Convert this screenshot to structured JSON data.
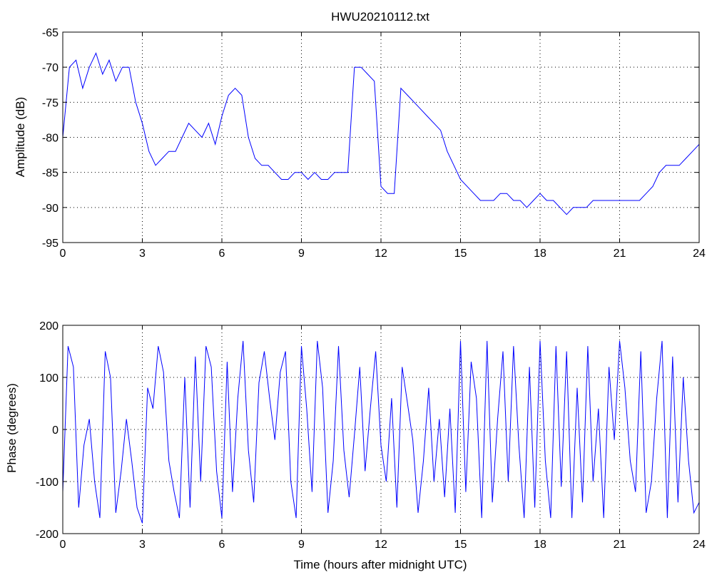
{
  "chart_data": [
    {
      "type": "line",
      "title": "HWU20210112.txt",
      "xlabel": "",
      "ylabel": "Amplitude (dB)",
      "xlim": [
        0,
        24
      ],
      "ylim": [
        -95,
        -65
      ],
      "xticks": [
        0,
        3,
        6,
        9,
        12,
        15,
        18,
        21,
        24
      ],
      "yticks": [
        -95,
        -90,
        -85,
        -80,
        -75,
        -70,
        -65
      ],
      "grid": true,
      "line_color": "#0000ff",
      "series": [
        {
          "x": [
            0,
            0.25,
            0.5,
            0.75,
            1.0,
            1.25,
            1.5,
            1.75,
            2.0,
            2.25,
            2.5,
            2.75,
            3.0,
            3.25,
            3.5,
            3.75,
            4.0,
            4.25,
            4.5,
            4.75,
            5.0,
            5.25,
            5.5,
            5.75,
            6.0,
            6.25,
            6.5,
            6.75,
            7.0,
            7.25,
            7.5,
            7.75,
            8.0,
            8.25,
            8.5,
            8.75,
            9.0,
            9.25,
            9.5,
            9.75,
            10.0,
            10.25,
            10.5,
            10.75,
            11.0,
            11.25,
            11.5,
            11.75,
            12.0,
            12.25,
            12.5,
            12.75,
            13.0,
            13.25,
            13.5,
            13.75,
            14.0,
            14.25,
            14.5,
            14.75,
            15.0,
            15.25,
            15.5,
            15.75,
            16.0,
            16.25,
            16.5,
            16.75,
            17.0,
            17.25,
            17.5,
            17.75,
            18.0,
            18.25,
            18.5,
            18.75,
            19.0,
            19.25,
            19.5,
            19.75,
            20.0,
            20.25,
            20.5,
            20.75,
            21.0,
            21.25,
            21.5,
            21.75,
            22.0,
            22.25,
            22.5,
            22.75,
            23.0,
            23.25,
            23.5,
            23.75,
            24.0
          ],
          "values": [
            -80,
            -70,
            -69,
            -73,
            -70,
            -68,
            -71,
            -69,
            -72,
            -70,
            -70,
            -75,
            -78,
            -82,
            -84,
            -83,
            -82,
            -82,
            -80,
            -78,
            -79,
            -80,
            -78,
            -81,
            -77,
            -74,
            -73,
            -74,
            -80,
            -83,
            -84,
            -84,
            -85,
            -86,
            -86,
            -85,
            -85,
            -86,
            -85,
            -86,
            -86,
            -85,
            -85,
            -85,
            -70,
            -70,
            -71,
            -72,
            -87,
            -88,
            -88,
            -73,
            -74,
            -75,
            -76,
            -77,
            -78,
            -79,
            -82,
            -84,
            -86,
            -87,
            -88,
            -89,
            -89,
            -89,
            -88,
            -88,
            -89,
            -89,
            -90,
            -89,
            -88,
            -89,
            -89,
            -90,
            -91,
            -90,
            -90,
            -90,
            -89,
            -89,
            -89,
            -89,
            -89,
            -89,
            -89,
            -89,
            -88,
            -87,
            -85,
            -84,
            -84,
            -84,
            -83,
            -82,
            -81
          ]
        }
      ]
    },
    {
      "type": "line",
      "title": "",
      "xlabel": "Time (hours after midnight UTC)",
      "ylabel": "Phase (degrees)",
      "xlim": [
        0,
        24
      ],
      "ylim": [
        -200,
        200
      ],
      "xticks": [
        0,
        3,
        6,
        9,
        12,
        15,
        18,
        21,
        24
      ],
      "yticks": [
        -200,
        -100,
        0,
        100,
        200
      ],
      "grid": true,
      "line_color": "#0000ff",
      "series": [
        {
          "x": [
            0,
            0.2,
            0.4,
            0.6,
            0.8,
            1.0,
            1.2,
            1.4,
            1.6,
            1.8,
            2.0,
            2.2,
            2.4,
            2.6,
            2.8,
            3.0,
            3.2,
            3.4,
            3.6,
            3.8,
            4.0,
            4.2,
            4.4,
            4.6,
            4.8,
            5.0,
            5.2,
            5.4,
            5.6,
            5.8,
            6.0,
            6.2,
            6.4,
            6.6,
            6.8,
            7.0,
            7.2,
            7.4,
            7.6,
            7.8,
            8.0,
            8.2,
            8.4,
            8.6,
            8.8,
            9.0,
            9.2,
            9.4,
            9.6,
            9.8,
            10.0,
            10.2,
            10.4,
            10.6,
            10.8,
            11.0,
            11.2,
            11.4,
            11.6,
            11.8,
            12.0,
            12.2,
            12.4,
            12.6,
            12.8,
            13.0,
            13.2,
            13.4,
            13.6,
            13.8,
            14.0,
            14.2,
            14.4,
            14.6,
            14.8,
            15.0,
            15.2,
            15.4,
            15.6,
            15.8,
            16.0,
            16.2,
            16.4,
            16.6,
            16.8,
            17.0,
            17.2,
            17.4,
            17.6,
            17.8,
            18.0,
            18.2,
            18.4,
            18.6,
            18.8,
            19.0,
            19.2,
            19.4,
            19.6,
            19.8,
            20.0,
            20.2,
            20.4,
            20.6,
            20.8,
            21.0,
            21.2,
            21.4,
            21.6,
            21.8,
            22.0,
            22.2,
            22.4,
            22.6,
            22.8,
            23.0,
            23.2,
            23.4,
            23.6,
            23.8,
            24.0
          ],
          "values": [
            -120,
            160,
            120,
            -150,
            -30,
            20,
            -100,
            -170,
            150,
            100,
            -160,
            -80,
            20,
            -60,
            -150,
            -180,
            80,
            40,
            160,
            110,
            -60,
            -120,
            -170,
            100,
            -150,
            140,
            -100,
            160,
            120,
            -80,
            -170,
            130,
            -120,
            60,
            170,
            -40,
            -140,
            90,
            150,
            60,
            -20,
            110,
            150,
            -100,
            -170,
            160,
            40,
            -120,
            170,
            80,
            -160,
            -60,
            160,
            -40,
            -130,
            -10,
            120,
            -80,
            40,
            150,
            -30,
            -100,
            60,
            -150,
            120,
            50,
            -20,
            -160,
            -60,
            80,
            -100,
            20,
            -130,
            40,
            -160,
            170,
            -120,
            130,
            60,
            -170,
            170,
            -140,
            20,
            150,
            -100,
            160,
            -30,
            -170,
            120,
            -150,
            170,
            -60,
            -170,
            160,
            -110,
            150,
            -170,
            80,
            -140,
            160,
            -100,
            40,
            -170,
            120,
            -20,
            170,
            80,
            -60,
            -120,
            150,
            -160,
            -100,
            60,
            170,
            -170,
            140,
            -140,
            100,
            -60,
            -160,
            -140
          ]
        }
      ]
    }
  ]
}
